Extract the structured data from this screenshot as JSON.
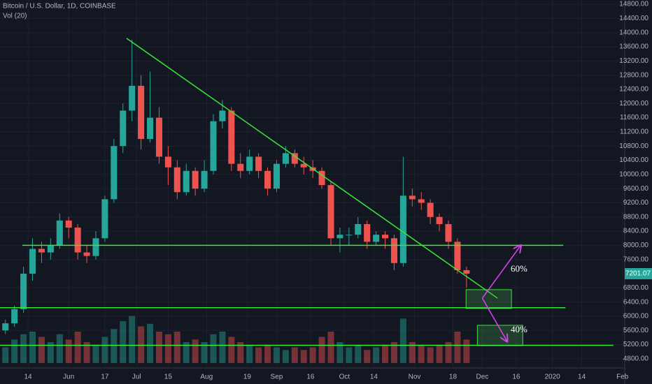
{
  "chart_data": {
    "type": "candlestick",
    "title": "Bitcoin / U.S. Dollar, 1D, COINBASE",
    "subtitle": "Vol (20)",
    "x": [
      124,
      128,
      132,
      136,
      140,
      144,
      148,
      152,
      156,
      160,
      164,
      168,
      172,
      176,
      180,
      184,
      188,
      192,
      196,
      200,
      204,
      208,
      212,
      216,
      220,
      224,
      228,
      232,
      236,
      240,
      244,
      248,
      252,
      256,
      260,
      264,
      268,
      272,
      276,
      280,
      284,
      288,
      292,
      296,
      300,
      304,
      308,
      312,
      316,
      320,
      324,
      328
    ],
    "open": [
      5600,
      5800,
      6200,
      7200,
      7900,
      7800,
      8000,
      8700,
      8500,
      7800,
      7700,
      8200,
      9300,
      10800,
      11800,
      12500,
      11000,
      11600,
      10500,
      10200,
      9500,
      10100,
      9600,
      10100,
      11500,
      11800,
      10300,
      10100,
      10500,
      10100,
      9600,
      10300,
      10600,
      10300,
      10200,
      10100,
      9700,
      8200,
      8300,
      8300,
      8600,
      8100,
      8300,
      8200,
      7500,
      9400,
      9300,
      9200,
      8800,
      8600,
      8100,
      7300
    ],
    "high": [
      5900,
      6300,
      7400,
      8200,
      8100,
      8200,
      8900,
      8800,
      8600,
      8000,
      8400,
      9400,
      11000,
      12000,
      13800,
      12800,
      12900,
      11900,
      10800,
      10400,
      10300,
      10200,
      10400,
      11700,
      12100,
      11900,
      10600,
      10700,
      10600,
      10200,
      10400,
      10800,
      10700,
      10500,
      10400,
      10200,
      9800,
      8500,
      8500,
      8800,
      8700,
      8400,
      8400,
      8300,
      10500,
      9600,
      9500,
      9300,
      8900,
      8700,
      8200,
      7400
    ],
    "low": [
      5500,
      5700,
      6100,
      7000,
      7500,
      7600,
      7900,
      8200,
      7600,
      7500,
      7600,
      8100,
      9200,
      10600,
      11500,
      10700,
      10900,
      10300,
      9700,
      9300,
      9400,
      9400,
      9500,
      10000,
      11300,
      10100,
      9900,
      10000,
      9900,
      9400,
      9500,
      10200,
      10200,
      10000,
      9900,
      9600,
      8000,
      7800,
      8000,
      8200,
      7900,
      8000,
      7900,
      7300,
      7400,
      9100,
      9000,
      8600,
      8400,
      7900,
      7200,
      6800
    ],
    "close": [
      5800,
      6200,
      7200,
      7900,
      7800,
      8000,
      8700,
      8500,
      7800,
      7700,
      8200,
      9300,
      10800,
      11800,
      12500,
      11000,
      11600,
      10500,
      10200,
      9500,
      10100,
      9600,
      10100,
      11500,
      11800,
      10300,
      10100,
      10500,
      10100,
      9600,
      10300,
      10600,
      10300,
      10200,
      10100,
      9700,
      8200,
      8300,
      8300,
      8600,
      8100,
      8300,
      8200,
      7500,
      9400,
      9300,
      9200,
      8800,
      8600,
      8100,
      7300,
      7201.07
    ],
    "volume": [
      30,
      45,
      55,
      60,
      50,
      40,
      55,
      45,
      60,
      40,
      35,
      50,
      65,
      80,
      90,
      70,
      75,
      60,
      55,
      60,
      40,
      45,
      40,
      55,
      60,
      50,
      40,
      35,
      30,
      35,
      30,
      25,
      30,
      25,
      30,
      50,
      60,
      40,
      30,
      35,
      25,
      30,
      35,
      40,
      85,
      40,
      35,
      30,
      35,
      40,
      60,
      45
    ],
    "volume_lim": [
      0,
      100
    ],
    "up_color": "#26a69a",
    "down_color": "#ef5350",
    "last_price": 7201.07,
    "xlim": [
      121.6,
      398
    ],
    "xticks": [
      {
        "value": 134,
        "label": "14"
      },
      {
        "value": 152,
        "label": "Jun"
      },
      {
        "value": 168,
        "label": "17"
      },
      {
        "value": 182,
        "label": "Jul"
      },
      {
        "value": 196,
        "label": "15"
      },
      {
        "value": 213,
        "label": "Aug"
      },
      {
        "value": 231,
        "label": "19"
      },
      {
        "value": 244,
        "label": "Sep"
      },
      {
        "value": 259,
        "label": "16"
      },
      {
        "value": 274,
        "label": "Oct"
      },
      {
        "value": 287,
        "label": "14"
      },
      {
        "value": 305,
        "label": "Nov"
      },
      {
        "value": 322,
        "label": "18"
      },
      {
        "value": 335,
        "label": "Dec"
      },
      {
        "value": 350,
        "label": "16"
      },
      {
        "value": 366,
        "label": "2020"
      },
      {
        "value": 379,
        "label": "14"
      },
      {
        "value": 397,
        "label": "Feb"
      }
    ],
    "ylim": [
      4680,
      14920
    ],
    "yticks": [
      {
        "value": 4800,
        "label": "4800.00"
      },
      {
        "value": 5200,
        "label": "5200.00"
      },
      {
        "value": 5600,
        "label": "5600.00"
      },
      {
        "value": 6000,
        "label": "6000.00"
      },
      {
        "value": 6400,
        "label": "6400.00"
      },
      {
        "value": 6800,
        "label": "6800.00"
      },
      {
        "value": 7600,
        "label": "7600.00"
      },
      {
        "value": 8000,
        "label": "8000.00"
      },
      {
        "value": 8400,
        "label": "8400.00"
      },
      {
        "value": 8800,
        "label": "8800.00"
      },
      {
        "value": 9200,
        "label": "9200.00"
      },
      {
        "value": 9600,
        "label": "9600.00"
      },
      {
        "value": 10000,
        "label": "10000.00"
      },
      {
        "value": 10400,
        "label": "10400.00"
      },
      {
        "value": 10800,
        "label": "10800.00"
      },
      {
        "value": 11200,
        "label": "11200.00"
      },
      {
        "value": 11600,
        "label": "11600.00"
      },
      {
        "value": 12000,
        "label": "12000.00"
      },
      {
        "value": 12400,
        "label": "12400.00"
      },
      {
        "value": 12800,
        "label": "12800.00"
      },
      {
        "value": 13200,
        "label": "13200.00"
      },
      {
        "value": 13600,
        "label": "13600.00"
      },
      {
        "value": 14000,
        "label": "14000.00"
      },
      {
        "value": 14400,
        "label": "14400.00"
      },
      {
        "value": 14800,
        "label": "14800.00"
      }
    ],
    "grid": true,
    "hlines": [
      {
        "price": 8000,
        "from": 131.5,
        "to": 370.8
      },
      {
        "price": 6240,
        "from": 121.6,
        "to": 371.8
      },
      {
        "price": 5180,
        "from": 121.6,
        "to": 393
      }
    ],
    "trendline": {
      "x": [
        177.6,
        341.7
      ],
      "y": [
        13840,
        6510
      ]
    },
    "boxes": [
      {
        "x": [
          327.8,
          347.9
        ],
        "y": [
          6220,
          6750
        ]
      },
      {
        "x": [
          332.8,
          352.9
        ],
        "y": [
          5170,
          5745
        ]
      }
    ],
    "arrows": [
      {
        "x": [
          335,
          352
        ],
        "y": [
          6510,
          8000
        ],
        "label": "60%"
      },
      {
        "x": [
          335,
          346
        ],
        "y": [
          6510,
          5290
        ],
        "label": "40%"
      }
    ]
  }
}
